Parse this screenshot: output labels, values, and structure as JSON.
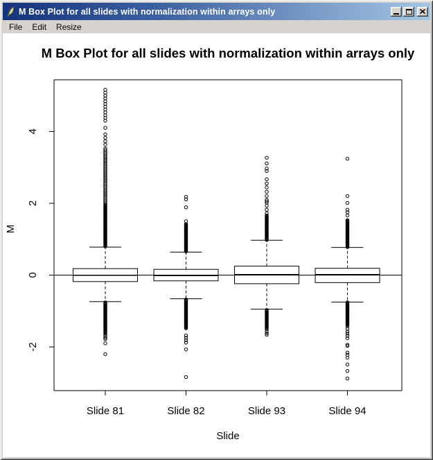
{
  "window": {
    "title": "M Box Plot for all slides with normalization within arrays only",
    "icons": {
      "app": "feather-icon",
      "minimize": "minimize-icon",
      "maximize": "maximize-icon",
      "close": "close-icon"
    },
    "menu": [
      "File",
      "Edit",
      "Resize"
    ]
  },
  "chart_data": {
    "type": "boxplot",
    "title": "M Box Plot for all slides with normalization within arrays only",
    "xlabel": "Slide",
    "ylabel": "M",
    "ylim": [
      -3.3,
      5.4
    ],
    "yticks": [
      -2,
      0,
      2,
      4
    ],
    "reference_line_y": 0,
    "grid": false,
    "categories": [
      "Slide 81",
      "Slide 82",
      "Slide 93",
      "Slide 94"
    ],
    "groups": [
      {
        "label": "Slide 81",
        "q1": -0.18,
        "median": -0.01,
        "q3": 0.18,
        "whisker_low": -0.74,
        "whisker_high": 0.78,
        "outlier_runs": [
          {
            "from": 0.8,
            "to": 1.95,
            "n": 58
          },
          {
            "from": 1.98,
            "to": 3.52,
            "n": 40
          },
          {
            "from": 3.63,
            "to": 3.92,
            "n": 4
          },
          {
            "from": 4.3,
            "to": 5.0,
            "n": 10
          },
          {
            "from": -0.76,
            "to": -1.6,
            "n": 42
          },
          {
            "from": -1.63,
            "to": -1.78,
            "n": 5
          }
        ],
        "outlier_points": [
          4.1,
          5.08,
          5.16,
          -1.9,
          -2.2
        ]
      },
      {
        "label": "Slide 82",
        "q1": -0.16,
        "median": -0.02,
        "q3": 0.16,
        "whisker_low": -0.66,
        "whisker_high": 0.64,
        "outlier_runs": [
          {
            "from": 0.66,
            "to": 1.42,
            "n": 40
          },
          {
            "from": -0.68,
            "to": -1.48,
            "n": 40
          },
          {
            "from": -1.68,
            "to": -1.88,
            "n": 4
          }
        ],
        "outlier_points": [
          1.5,
          1.89,
          2.11,
          2.18,
          -2.07,
          -2.84
        ]
      },
      {
        "label": "Slide 93",
        "q1": -0.24,
        "median": 0.02,
        "q3": 0.25,
        "whisker_low": -0.95,
        "whisker_high": 0.97,
        "outlier_runs": [
          {
            "from": 0.98,
            "to": 1.66,
            "n": 35
          },
          {
            "from": -0.97,
            "to": -1.5,
            "n": 24
          }
        ],
        "outlier_points": [
          1.72,
          1.82,
          1.93,
          2.01,
          2.05,
          2.09,
          2.2,
          2.32,
          2.44,
          2.55,
          2.67,
          2.9,
          2.97,
          3.11,
          3.27,
          -1.56,
          -1.62,
          -1.66
        ]
      },
      {
        "label": "Slide 94",
        "q1": -0.21,
        "median": 0.02,
        "q3": 0.19,
        "whisker_low": -0.75,
        "whisker_high": 0.77,
        "outlier_runs": [
          {
            "from": 0.78,
            "to": 1.53,
            "n": 36
          },
          {
            "from": -0.76,
            "to": -1.39,
            "n": 32
          }
        ],
        "outlier_points": [
          1.66,
          1.75,
          1.82,
          2.01,
          2.2,
          3.24,
          -1.43,
          -1.5,
          -1.57,
          -1.63,
          -1.69,
          -1.76,
          -1.94,
          -1.97,
          -2.16,
          -2.22,
          -2.3,
          -2.49,
          -2.67,
          -2.88
        ]
      }
    ]
  }
}
